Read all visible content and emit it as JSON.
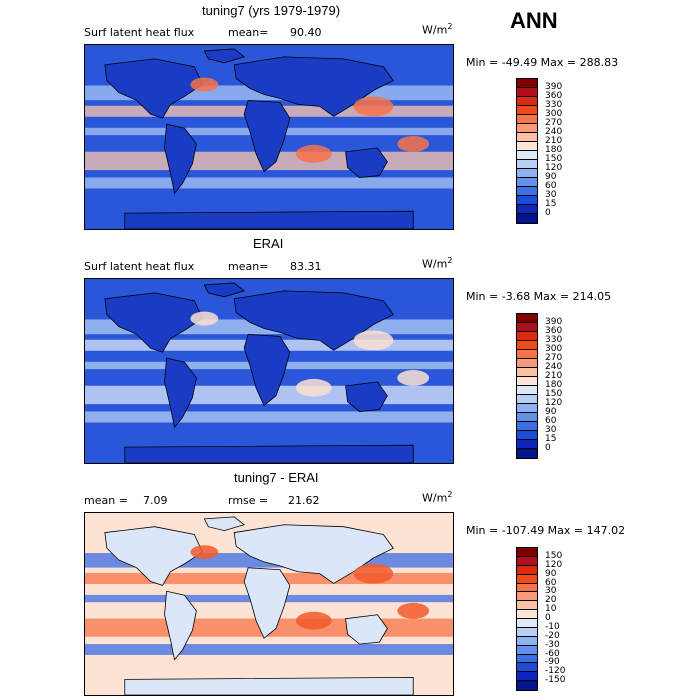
{
  "season": "ANN",
  "panels": [
    {
      "title": "tuning7 (yrs 1979-1979)",
      "left_label": "Surf latent heat flux",
      "stat_label": "mean=",
      "stat_value": "90.40",
      "units": "W/m",
      "units_sup": "2",
      "range": "Min = -49.49 Max = 288.83",
      "colorbar": {
        "levels": [
          "390",
          "360",
          "330",
          "300",
          "270",
          "240",
          "210",
          "180",
          "150",
          "120",
          "90",
          "60",
          "30",
          "15",
          "0"
        ],
        "colors": [
          "#800000",
          "#b0101a",
          "#dc2a12",
          "#f04a1a",
          "#f8724a",
          "#fb9a7a",
          "#fcc0a4",
          "#fde6d8",
          "#dce9f8",
          "#b8d0f4",
          "#8eb2f0",
          "#6492ea",
          "#3c6ee4",
          "#1e4ad8",
          "#0c28bc",
          "#00148c"
        ]
      },
      "map": {
        "base": "#2a56da",
        "land": "#1a3cc4",
        "warm": "#fcc8ae",
        "hot": "#f7724a",
        "light": "#a9c6f4"
      }
    },
    {
      "title": "ERAI",
      "left_label": "Surf latent heat flux",
      "stat_label": "mean=",
      "stat_value": "83.31",
      "units": "W/m",
      "units_sup": "2",
      "range": "Min =  -3.68 Max = 214.05",
      "colorbar": {
        "levels": [
          "390",
          "360",
          "330",
          "300",
          "270",
          "240",
          "210",
          "180",
          "150",
          "120",
          "90",
          "60",
          "30",
          "15",
          "0"
        ],
        "colors": [
          "#800000",
          "#b0101a",
          "#dc2a12",
          "#f04a1a",
          "#f8724a",
          "#fb9a7a",
          "#fcc0a4",
          "#fde6d8",
          "#dce9f8",
          "#b8d0f4",
          "#8eb2f0",
          "#6492ea",
          "#3c6ee4",
          "#1e4ad8",
          "#0c28bc",
          "#00148c"
        ]
      },
      "map": {
        "base": "#2a56da",
        "land": "#1a3cc4",
        "warm": "#dbe8f8",
        "hot": "#fbe0d2",
        "light": "#b3cef4"
      }
    },
    {
      "title": "tuning7 - ERAI",
      "left_label": "mean =",
      "stat_label": "7.09",
      "rmse_label": "rmse =",
      "rmse_value": "21.62",
      "units": "W/m",
      "units_sup": "2",
      "range": "Min = -107.49 Max = 147.02",
      "colorbar": {
        "levels": [
          "150",
          "120",
          "90",
          "60",
          "30",
          "20",
          "10",
          "0",
          "-10",
          "-20",
          "-30",
          "-60",
          "-90",
          "-120",
          "-150"
        ],
        "colors": [
          "#800000",
          "#b0101a",
          "#dc2a12",
          "#f04a1a",
          "#f8724a",
          "#fb9a7a",
          "#fcc0a4",
          "#fde6d8",
          "#dce9f8",
          "#b8d0f4",
          "#8eb2f0",
          "#6492ea",
          "#3c6ee4",
          "#1e4ad8",
          "#0c28bc",
          "#00148c"
        ]
      },
      "map": {
        "base": "#fce3d4",
        "land": "#dbe7f8",
        "warm": "#f8744a",
        "hot": "#f25a2a",
        "light": "#3c6ee4"
      }
    }
  ],
  "chart_data": [
    {
      "type": "heatmap",
      "title": "tuning7 (yrs 1979-1979)",
      "variable": "Surf latent heat flux",
      "units": "W/m2",
      "mean": 90.4,
      "min": -49.49,
      "max": 288.83,
      "levels": [
        0,
        15,
        30,
        60,
        90,
        120,
        150,
        180,
        210,
        240,
        270,
        300,
        330,
        360,
        390
      ]
    },
    {
      "type": "heatmap",
      "title": "ERAI",
      "variable": "Surf latent heat flux",
      "units": "W/m2",
      "mean": 83.31,
      "min": -3.68,
      "max": 214.05,
      "levels": [
        0,
        15,
        30,
        60,
        90,
        120,
        150,
        180,
        210,
        240,
        270,
        300,
        330,
        360,
        390
      ]
    },
    {
      "type": "heatmap",
      "title": "tuning7 - ERAI",
      "units": "W/m2",
      "mean": 7.09,
      "rmse": 21.62,
      "min": -107.49,
      "max": 147.02,
      "levels": [
        -150,
        -120,
        -90,
        -60,
        -30,
        -20,
        -10,
        0,
        10,
        20,
        30,
        60,
        90,
        120,
        150
      ]
    }
  ]
}
